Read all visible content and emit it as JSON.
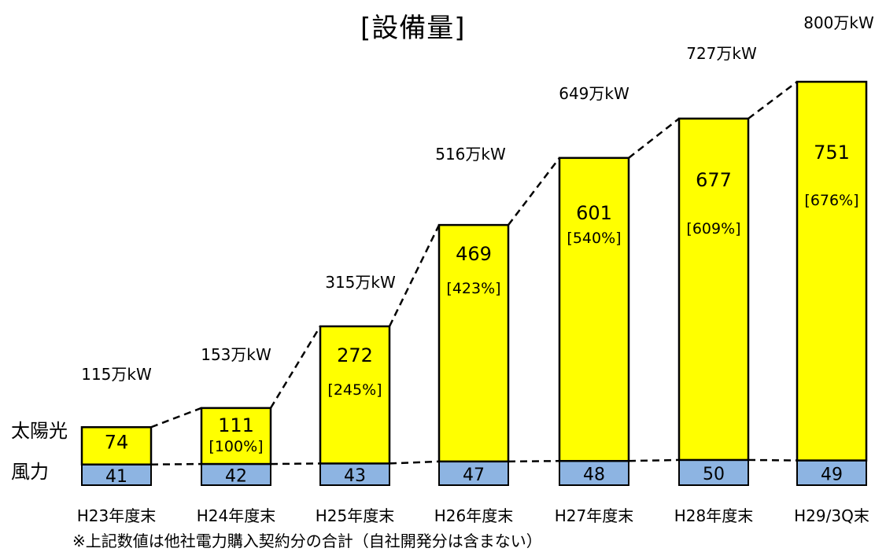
{
  "chart_data": {
    "type": "bar",
    "stacked": true,
    "title": "[設備量]",
    "categories": [
      "H23年度末",
      "H24年度末",
      "H25年度末",
      "H26年度末",
      "H27年度末",
      "H28年度末",
      "H29/3Q末"
    ],
    "series": [
      {
        "name": "風力",
        "values": [
          41,
          42,
          43,
          47,
          48,
          50,
          49
        ],
        "color": "#8db4e2"
      },
      {
        "name": "太陽光",
        "values": [
          74,
          111,
          272,
          469,
          601,
          677,
          751
        ],
        "color": "#ffff00"
      }
    ],
    "solar_growth_labels": [
      "",
      "[100%]",
      "[245%]",
      "[423%]",
      "[540%]",
      "[609%]",
      "[676%]"
    ],
    "total_labels": [
      "115万kW",
      "153万kW",
      "315万kW",
      "516万kW",
      "649万kW",
      "727万kW",
      "800万kW"
    ],
    "ylim": [
      0,
      800
    ],
    "legend": "left"
  },
  "note": "※上記数値は他社電力購入契約分の合計（自社開発分は含まない）"
}
